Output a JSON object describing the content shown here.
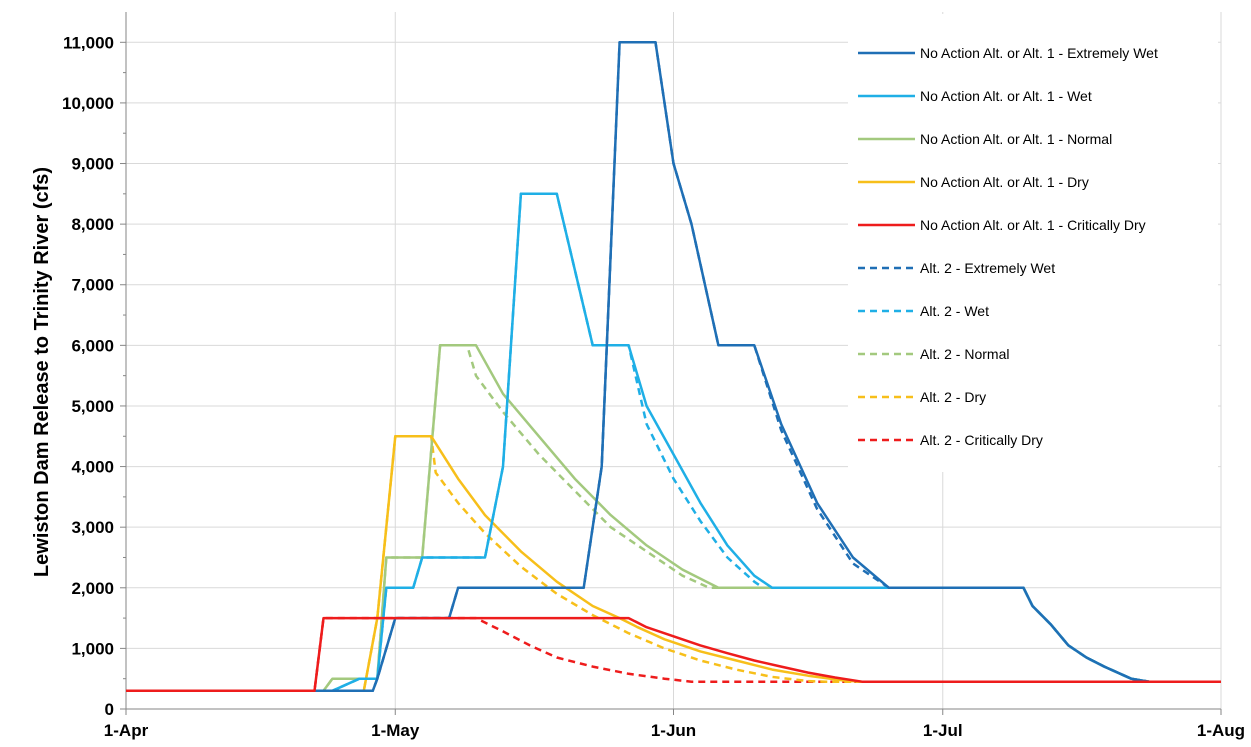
{
  "chart_data": {
    "type": "line",
    "title": "",
    "xlabel": "",
    "ylabel": "Lewiston Dam Release to Trinity River (cfs)",
    "x_ticks": [
      "1-Apr",
      "1-May",
      "1-Jun",
      "1-Jul",
      "1-Aug"
    ],
    "x_tick_days": [
      0,
      30,
      61,
      91,
      122
    ],
    "y_ticks": [
      "0",
      "1,000",
      "2,000",
      "3,000",
      "4,000",
      "5,000",
      "6,000",
      "7,000",
      "8,000",
      "9,000",
      "10,000",
      "11,000"
    ],
    "ylim": [
      0,
      11500
    ],
    "xlim_days": [
      0,
      122
    ],
    "grid": true,
    "legend_position": "top-right",
    "series": [
      {
        "name": "No Action Alt. or Alt. 1 - Extremely Wet",
        "color": "#1f6fb5",
        "dash": false,
        "points": [
          [
            0,
            300
          ],
          [
            23,
            300
          ],
          [
            27,
            300
          ],
          [
            27.5,
            300
          ],
          [
            28,
            500
          ],
          [
            30,
            1500
          ],
          [
            36,
            1500
          ],
          [
            37,
            2000
          ],
          [
            51,
            2000
          ],
          [
            53,
            4000
          ],
          [
            55,
            11000
          ],
          [
            59,
            11000
          ],
          [
            61,
            9000
          ],
          [
            63,
            8000
          ],
          [
            66,
            6000
          ],
          [
            70,
            6000
          ],
          [
            73,
            4700
          ],
          [
            77,
            3400
          ],
          [
            81,
            2500
          ],
          [
            85,
            2000
          ],
          [
            91,
            2000
          ],
          [
            100,
            2000
          ],
          [
            101,
            1700
          ],
          [
            103,
            1400
          ],
          [
            105,
            1050
          ],
          [
            107,
            850
          ],
          [
            109,
            700
          ],
          [
            112,
            500
          ],
          [
            114,
            450
          ],
          [
            122,
            450
          ]
        ]
      },
      {
        "name": "No Action Alt. or Alt. 1 - Wet",
        "color": "#1fafe6",
        "dash": false,
        "points": [
          [
            0,
            300
          ],
          [
            23,
            300
          ],
          [
            26,
            500
          ],
          [
            28,
            500
          ],
          [
            29,
            2000
          ],
          [
            32,
            2000
          ],
          [
            33,
            2500
          ],
          [
            40,
            2500
          ],
          [
            42,
            4000
          ],
          [
            44,
            8500
          ],
          [
            48,
            8500
          ],
          [
            52,
            6000
          ],
          [
            56,
            6000
          ],
          [
            58,
            5000
          ],
          [
            61,
            4200
          ],
          [
            64,
            3400
          ],
          [
            67,
            2700
          ],
          [
            70,
            2200
          ],
          [
            72,
            2000
          ],
          [
            91,
            2000
          ],
          [
            100,
            2000
          ],
          [
            101,
            1700
          ],
          [
            103,
            1400
          ],
          [
            105,
            1050
          ],
          [
            107,
            850
          ],
          [
            109,
            700
          ],
          [
            112,
            500
          ],
          [
            114,
            450
          ],
          [
            122,
            450
          ]
        ]
      },
      {
        "name": "No Action Alt. or Alt. 1 - Normal",
        "color": "#a3c97e",
        "dash": false,
        "points": [
          [
            0,
            300
          ],
          [
            22,
            300
          ],
          [
            23,
            500
          ],
          [
            28,
            500
          ],
          [
            29,
            2500
          ],
          [
            33,
            2500
          ],
          [
            35,
            6000
          ],
          [
            39,
            6000
          ],
          [
            42,
            5200
          ],
          [
            46,
            4500
          ],
          [
            50,
            3800
          ],
          [
            54,
            3200
          ],
          [
            58,
            2700
          ],
          [
            62,
            2300
          ],
          [
            66,
            2000
          ],
          [
            91,
            2000
          ],
          [
            100,
            2000
          ],
          [
            101,
            1700
          ],
          [
            103,
            1400
          ],
          [
            105,
            1050
          ],
          [
            107,
            850
          ],
          [
            109,
            700
          ],
          [
            112,
            500
          ],
          [
            114,
            450
          ],
          [
            122,
            450
          ]
        ]
      },
      {
        "name": "No Action Alt. or Alt. 1 - Dry",
        "color": "#f7bf1a",
        "dash": false,
        "points": [
          [
            0,
            300
          ],
          [
            25,
            300
          ],
          [
            26.5,
            300
          ],
          [
            28,
            1500
          ],
          [
            30,
            4500
          ],
          [
            34,
            4500
          ],
          [
            37,
            3800
          ],
          [
            40,
            3200
          ],
          [
            44,
            2600
          ],
          [
            48,
            2100
          ],
          [
            52,
            1700
          ],
          [
            55,
            1500
          ],
          [
            57,
            1350
          ],
          [
            60,
            1150
          ],
          [
            64,
            950
          ],
          [
            68,
            800
          ],
          [
            72,
            650
          ],
          [
            76,
            550
          ],
          [
            80,
            470
          ],
          [
            82,
            450
          ],
          [
            122,
            450
          ]
        ]
      },
      {
        "name": "No Action Alt. or Alt. 1 - Critically Dry",
        "color": "#ee1c1c",
        "dash": false,
        "points": [
          [
            0,
            300
          ],
          [
            21,
            300
          ],
          [
            22,
            1500
          ],
          [
            56,
            1500
          ],
          [
            58,
            1350
          ],
          [
            61,
            1200
          ],
          [
            64,
            1050
          ],
          [
            67,
            920
          ],
          [
            70,
            800
          ],
          [
            73,
            700
          ],
          [
            76,
            600
          ],
          [
            79,
            520
          ],
          [
            82,
            450
          ],
          [
            122,
            450
          ]
        ]
      },
      {
        "name": "Alt. 2 - Extremely Wet",
        "color": "#1f6fb5",
        "dash": true,
        "points": [
          [
            0,
            300
          ],
          [
            23,
            300
          ],
          [
            27,
            300
          ],
          [
            27.5,
            300
          ],
          [
            28,
            500
          ],
          [
            30,
            1500
          ],
          [
            36,
            1500
          ],
          [
            37,
            2000
          ],
          [
            51,
            2000
          ],
          [
            53,
            4000
          ],
          [
            55,
            11000
          ],
          [
            59,
            11000
          ],
          [
            61,
            9000
          ],
          [
            63,
            8000
          ],
          [
            66,
            6000
          ],
          [
            70,
            6000
          ],
          [
            73,
            4600
          ],
          [
            77,
            3300
          ],
          [
            81,
            2400
          ],
          [
            85,
            2000
          ],
          [
            91,
            2000
          ],
          [
            100,
            2000
          ],
          [
            101,
            1700
          ],
          [
            103,
            1400
          ],
          [
            105,
            1050
          ],
          [
            107,
            850
          ],
          [
            109,
            700
          ],
          [
            112,
            500
          ],
          [
            114,
            450
          ],
          [
            122,
            450
          ]
        ]
      },
      {
        "name": "Alt. 2 - Wet",
        "color": "#1fafe6",
        "dash": true,
        "points": [
          [
            0,
            300
          ],
          [
            23,
            300
          ],
          [
            26,
            500
          ],
          [
            28,
            500
          ],
          [
            29,
            2000
          ],
          [
            32,
            2000
          ],
          [
            33,
            2500
          ],
          [
            40,
            2500
          ],
          [
            42,
            4000
          ],
          [
            44,
            8500
          ],
          [
            48,
            8500
          ],
          [
            52,
            6000
          ],
          [
            56,
            6000
          ],
          [
            58,
            4700
          ],
          [
            61,
            3800
          ],
          [
            64,
            3100
          ],
          [
            67,
            2500
          ],
          [
            70,
            2100
          ],
          [
            71,
            2000
          ],
          [
            91,
            2000
          ],
          [
            100,
            2000
          ],
          [
            101,
            1700
          ],
          [
            103,
            1400
          ],
          [
            105,
            1050
          ],
          [
            107,
            850
          ],
          [
            109,
            700
          ],
          [
            112,
            500
          ],
          [
            114,
            450
          ],
          [
            122,
            450
          ]
        ]
      },
      {
        "name": "Alt. 2 - Normal",
        "color": "#a3c97e",
        "dash": true,
        "points": [
          [
            0,
            300
          ],
          [
            22,
            300
          ],
          [
            23,
            500
          ],
          [
            28,
            500
          ],
          [
            29,
            2500
          ],
          [
            33,
            2500
          ],
          [
            35,
            6000
          ],
          [
            38,
            6000
          ],
          [
            39,
            5500
          ],
          [
            42,
            4900
          ],
          [
            46,
            4200
          ],
          [
            50,
            3600
          ],
          [
            54,
            3000
          ],
          [
            58,
            2600
          ],
          [
            62,
            2200
          ],
          [
            65,
            2000
          ],
          [
            91,
            2000
          ],
          [
            100,
            2000
          ],
          [
            101,
            1700
          ],
          [
            103,
            1400
          ],
          [
            105,
            1050
          ],
          [
            107,
            850
          ],
          [
            109,
            700
          ],
          [
            112,
            500
          ],
          [
            114,
            450
          ],
          [
            122,
            450
          ]
        ]
      },
      {
        "name": "Alt. 2 - Dry",
        "color": "#f7bf1a",
        "dash": true,
        "points": [
          [
            0,
            300
          ],
          [
            25,
            300
          ],
          [
            26.5,
            300
          ],
          [
            28,
            1500
          ],
          [
            30,
            4500
          ],
          [
            34,
            4500
          ],
          [
            34.5,
            3900
          ],
          [
            37,
            3400
          ],
          [
            40,
            2900
          ],
          [
            44,
            2350
          ],
          [
            48,
            1900
          ],
          [
            52,
            1550
          ],
          [
            56,
            1250
          ],
          [
            60,
            1000
          ],
          [
            64,
            800
          ],
          [
            68,
            650
          ],
          [
            72,
            530
          ],
          [
            76,
            460
          ],
          [
            78,
            450
          ],
          [
            122,
            450
          ]
        ]
      },
      {
        "name": "Alt. 2 - Critically Dry",
        "color": "#ee1c1c",
        "dash": true,
        "points": [
          [
            0,
            300
          ],
          [
            21,
            300
          ],
          [
            22,
            1500
          ],
          [
            39,
            1500
          ],
          [
            42,
            1280
          ],
          [
            45,
            1050
          ],
          [
            48,
            850
          ],
          [
            52,
            700
          ],
          [
            56,
            580
          ],
          [
            60,
            500
          ],
          [
            63,
            450
          ],
          [
            122,
            450
          ]
        ]
      }
    ]
  }
}
